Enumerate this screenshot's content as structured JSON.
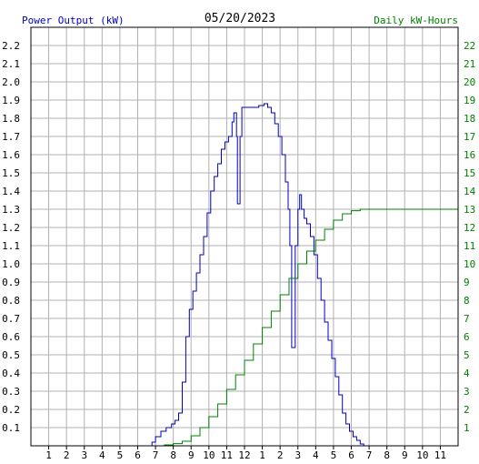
{
  "chart_data": {
    "type": "line",
    "title": "05/20/2023",
    "left_axis_label": "Power Output (kW)",
    "right_axis_label": "Daily kW-Hours",
    "x_tick_labels": [
      "1",
      "2",
      "3",
      "4",
      "5",
      "6",
      "7",
      "8",
      "9",
      "10",
      "11",
      "12",
      "1",
      "2",
      "3",
      "4",
      "5",
      "6",
      "7",
      "8",
      "9",
      "10",
      "11"
    ],
    "y_left_ticks": [
      "0.1",
      "0.2",
      "0.3",
      "0.4",
      "0.5",
      "0.6",
      "0.7",
      "0.8",
      "0.9",
      "1.0",
      "1.1",
      "1.2",
      "1.3",
      "1.4",
      "1.5",
      "1.6",
      "1.7",
      "1.8",
      "1.9",
      "2.0",
      "2.1",
      "2.2"
    ],
    "y_right_ticks": [
      "1",
      "2",
      "3",
      "4",
      "5",
      "6",
      "7",
      "8",
      "9",
      "10",
      "11",
      "12",
      "13",
      "14",
      "15",
      "16",
      "17",
      "18",
      "19",
      "20",
      "21",
      "22"
    ],
    "x_range_hours": [
      0,
      24
    ],
    "ylim_left": [
      0,
      2.3
    ],
    "ylim_right": [
      0,
      23
    ],
    "grid": true,
    "colors": {
      "power": "#0000c0",
      "energy": "#008000",
      "grid": "#b0b0b0",
      "frame": "#000000"
    },
    "series": [
      {
        "name": "Power Output (kW)",
        "axis": "left",
        "points": [
          [
            6.7,
            0.0
          ],
          [
            6.8,
            0.02
          ],
          [
            7.0,
            0.05
          ],
          [
            7.3,
            0.08
          ],
          [
            7.6,
            0.1
          ],
          [
            7.9,
            0.12
          ],
          [
            8.1,
            0.14
          ],
          [
            8.3,
            0.18
          ],
          [
            8.5,
            0.35
          ],
          [
            8.7,
            0.6
          ],
          [
            8.9,
            0.75
          ],
          [
            9.1,
            0.85
          ],
          [
            9.3,
            0.95
          ],
          [
            9.5,
            1.05
          ],
          [
            9.7,
            1.15
          ],
          [
            9.9,
            1.28
          ],
          [
            10.1,
            1.4
          ],
          [
            10.3,
            1.48
          ],
          [
            10.5,
            1.55
          ],
          [
            10.7,
            1.63
          ],
          [
            10.9,
            1.67
          ],
          [
            11.1,
            1.7
          ],
          [
            11.3,
            1.78
          ],
          [
            11.4,
            1.83
          ],
          [
            11.55,
            1.7
          ],
          [
            11.6,
            1.33
          ],
          [
            11.7,
            1.33
          ],
          [
            11.75,
            1.7
          ],
          [
            11.85,
            1.86
          ],
          [
            12.1,
            1.86
          ],
          [
            12.4,
            1.86
          ],
          [
            12.8,
            1.87
          ],
          [
            13.1,
            1.88
          ],
          [
            13.3,
            1.86
          ],
          [
            13.5,
            1.83
          ],
          [
            13.7,
            1.77
          ],
          [
            13.9,
            1.7
          ],
          [
            14.1,
            1.6
          ],
          [
            14.3,
            1.45
          ],
          [
            14.45,
            1.3
          ],
          [
            14.55,
            1.1
          ],
          [
            14.65,
            0.54
          ],
          [
            14.75,
            0.54
          ],
          [
            14.85,
            1.1
          ],
          [
            15.0,
            1.3
          ],
          [
            15.1,
            1.38
          ],
          [
            15.2,
            1.3
          ],
          [
            15.35,
            1.25
          ],
          [
            15.5,
            1.22
          ],
          [
            15.7,
            1.15
          ],
          [
            15.9,
            1.05
          ],
          [
            16.1,
            0.92
          ],
          [
            16.3,
            0.8
          ],
          [
            16.5,
            0.68
          ],
          [
            16.7,
            0.58
          ],
          [
            16.9,
            0.48
          ],
          [
            17.1,
            0.38
          ],
          [
            17.3,
            0.28
          ],
          [
            17.5,
            0.18
          ],
          [
            17.7,
            0.12
          ],
          [
            17.9,
            0.08
          ],
          [
            18.1,
            0.05
          ],
          [
            18.3,
            0.03
          ],
          [
            18.5,
            0.01
          ],
          [
            18.7,
            0.0
          ]
        ]
      },
      {
        "name": "Daily kW-Hours",
        "axis": "right",
        "points": [
          [
            6.7,
            0.0
          ],
          [
            7.5,
            0.05
          ],
          [
            8.0,
            0.12
          ],
          [
            8.5,
            0.25
          ],
          [
            9.0,
            0.55
          ],
          [
            9.5,
            1.0
          ],
          [
            10.0,
            1.6
          ],
          [
            10.5,
            2.3
          ],
          [
            11.0,
            3.1
          ],
          [
            11.5,
            3.9
          ],
          [
            12.0,
            4.7
          ],
          [
            12.5,
            5.6
          ],
          [
            13.0,
            6.5
          ],
          [
            13.5,
            7.4
          ],
          [
            14.0,
            8.3
          ],
          [
            14.5,
            9.2
          ],
          [
            15.0,
            10.0
          ],
          [
            15.5,
            10.7
          ],
          [
            16.0,
            11.3
          ],
          [
            16.5,
            11.9
          ],
          [
            17.0,
            12.4
          ],
          [
            17.5,
            12.75
          ],
          [
            18.0,
            12.92
          ],
          [
            18.5,
            13.0
          ],
          [
            19.0,
            13.0
          ],
          [
            24.0,
            13.0
          ]
        ]
      }
    ]
  }
}
